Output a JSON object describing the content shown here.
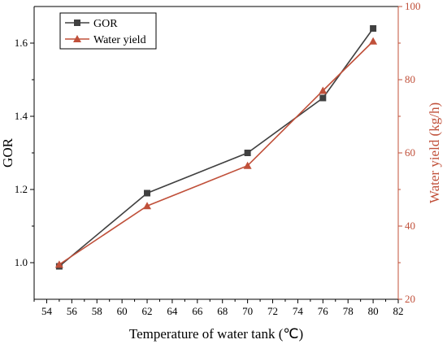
{
  "chart_data": {
    "type": "line",
    "xlabel": "Temperature of water tank (℃)",
    "ylabel_left": "GOR",
    "ylabel_right": "Water yield (kg/h)",
    "xlim": [
      53,
      82
    ],
    "xticks": [
      54,
      56,
      58,
      60,
      62,
      64,
      66,
      68,
      70,
      72,
      74,
      76,
      78,
      80,
      82
    ],
    "ylim_left": [
      0.9,
      1.7
    ],
    "yticks_left": [
      1.0,
      1.2,
      1.4,
      1.6
    ],
    "ylim_right": [
      20,
      100
    ],
    "yticks_right": [
      20,
      40,
      60,
      80,
      100
    ],
    "legend_position": "top-left",
    "grid": false,
    "series": [
      {
        "name": "GOR",
        "axis": "left",
        "marker": "square",
        "color": "#404040",
        "x": [
          55,
          62,
          70,
          76,
          80
        ],
        "y": [
          0.99,
          1.19,
          1.3,
          1.45,
          1.64
        ]
      },
      {
        "name": "Water yield",
        "axis": "right",
        "marker": "triangle",
        "color": "#c0503a",
        "x": [
          55,
          62,
          70,
          76,
          80
        ],
        "y": [
          29.5,
          45.5,
          56.5,
          77.0,
          90.5
        ]
      }
    ]
  },
  "colors": {
    "left_axis": "#000000",
    "right_axis": "#c0503a"
  }
}
